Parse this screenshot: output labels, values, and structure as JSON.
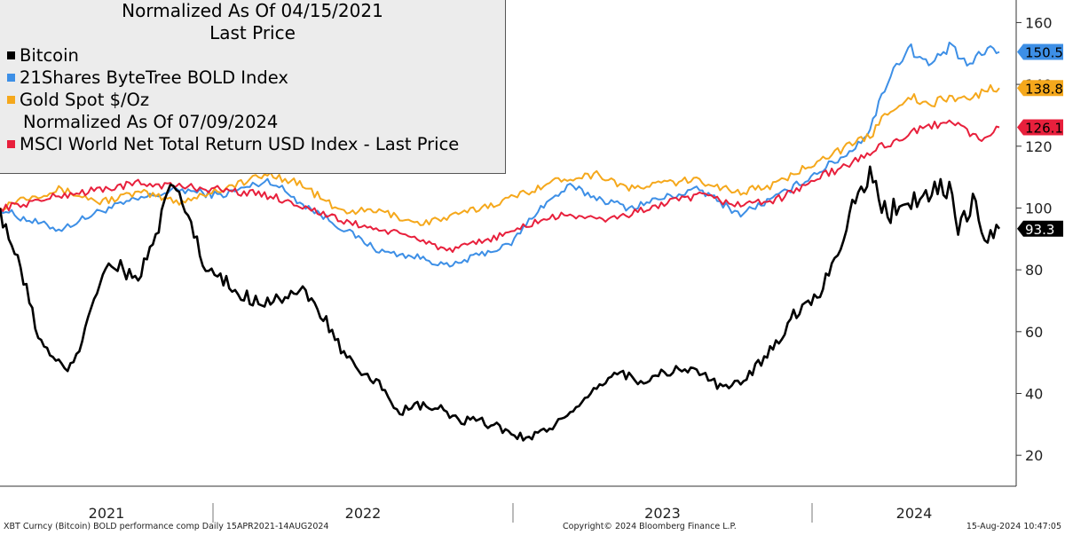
{
  "legend": {
    "title1": "Normalized As Of 04/15/2021",
    "title2": "Last Price",
    "subnote": "Normalized As Of 07/09/2024"
  },
  "footer": {
    "left": "XBT Curncy (Bitcoin) BOLD performance comp  Daily 15APR2021-14AUG2024",
    "center": "Copyright© 2024 Bloomberg Finance L.P.",
    "right": "15-Aug-2024 10:47:05"
  },
  "chart_data": {
    "type": "line",
    "title": "Normalized As Of 04/15/2021 - Last Price",
    "x_range": [
      "2021-04-15",
      "2024-08-14"
    ],
    "x_tick_labels": [
      "2021",
      "2022",
      "2023",
      "2024"
    ],
    "ylim": [
      10,
      165
    ],
    "y_ticks": [
      20,
      40,
      60,
      80,
      100,
      120,
      140,
      160
    ],
    "grid": false,
    "legend_position": "top-left",
    "series": [
      {
        "name": "21Shares ByteTree BOLD Index",
        "color": "#3d8fe6",
        "last_value": 150.5,
        "label_color": "#3d8fe6",
        "points": [
          [
            0,
            100
          ],
          [
            0.02,
            97
          ],
          [
            0.06,
            93
          ],
          [
            0.1,
            99
          ],
          [
            0.14,
            103
          ],
          [
            0.18,
            106
          ],
          [
            0.22,
            104
          ],
          [
            0.27,
            109
          ],
          [
            0.3,
            102
          ],
          [
            0.34,
            94
          ],
          [
            0.38,
            86
          ],
          [
            0.42,
            84
          ],
          [
            0.45,
            81
          ],
          [
            0.48,
            85
          ],
          [
            0.51,
            88
          ],
          [
            0.54,
            100
          ],
          [
            0.57,
            107
          ],
          [
            0.6,
            103
          ],
          [
            0.63,
            100
          ],
          [
            0.66,
            103
          ],
          [
            0.7,
            106
          ],
          [
            0.74,
            98
          ],
          [
            0.78,
            104
          ],
          [
            0.82,
            112
          ],
          [
            0.85,
            118
          ],
          [
            0.87,
            125
          ],
          [
            0.89,
            143
          ],
          [
            0.91,
            152
          ],
          [
            0.93,
            146
          ],
          [
            0.95,
            152
          ],
          [
            0.97,
            146
          ],
          [
            0.99,
            152
          ],
          [
            1.0,
            150.5
          ]
        ]
      },
      {
        "name": "Gold Spot $/Oz",
        "color": "#f5a81c",
        "last_value": 138.8,
        "label_color": "#f5a81c",
        "points": [
          [
            0,
            100
          ],
          [
            0.02,
            103
          ],
          [
            0.06,
            106
          ],
          [
            0.1,
            102
          ],
          [
            0.14,
            105
          ],
          [
            0.18,
            102
          ],
          [
            0.22,
            106
          ],
          [
            0.27,
            111
          ],
          [
            0.3,
            108
          ],
          [
            0.34,
            99
          ],
          [
            0.38,
            99
          ],
          [
            0.42,
            95
          ],
          [
            0.45,
            97
          ],
          [
            0.48,
            100
          ],
          [
            0.51,
            103
          ],
          [
            0.54,
            107
          ],
          [
            0.57,
            110
          ],
          [
            0.6,
            111
          ],
          [
            0.63,
            106
          ],
          [
            0.66,
            108
          ],
          [
            0.7,
            109
          ],
          [
            0.74,
            105
          ],
          [
            0.78,
            108
          ],
          [
            0.82,
            116
          ],
          [
            0.85,
            120
          ],
          [
            0.87,
            123
          ],
          [
            0.89,
            132
          ],
          [
            0.91,
            136
          ],
          [
            0.93,
            133
          ],
          [
            0.95,
            136
          ],
          [
            0.97,
            135
          ],
          [
            0.99,
            139
          ],
          [
            1.0,
            138.8
          ]
        ]
      },
      {
        "name": "MSCI World Net Total Return USD Index - Last Price",
        "color": "#e8203c",
        "last_value": 126.1,
        "label_color": "#e8203c",
        "normalized_note": "Normalized As Of 07/09/2024",
        "points": [
          [
            0,
            100
          ],
          [
            0.02,
            101
          ],
          [
            0.06,
            104
          ],
          [
            0.1,
            106
          ],
          [
            0.14,
            108
          ],
          [
            0.18,
            107
          ],
          [
            0.22,
            106
          ],
          [
            0.27,
            104
          ],
          [
            0.3,
            101
          ],
          [
            0.34,
            96
          ],
          [
            0.38,
            93
          ],
          [
            0.42,
            90
          ],
          [
            0.45,
            86
          ],
          [
            0.48,
            89
          ],
          [
            0.51,
            92
          ],
          [
            0.54,
            96
          ],
          [
            0.57,
            98
          ],
          [
            0.6,
            96
          ],
          [
            0.63,
            98
          ],
          [
            0.66,
            101
          ],
          [
            0.7,
            104
          ],
          [
            0.74,
            101
          ],
          [
            0.78,
            103
          ],
          [
            0.82,
            110
          ],
          [
            0.85,
            114
          ],
          [
            0.87,
            118
          ],
          [
            0.89,
            121
          ],
          [
            0.91,
            124
          ],
          [
            0.93,
            126
          ],
          [
            0.95,
            129
          ],
          [
            0.97,
            124
          ],
          [
            0.99,
            122
          ],
          [
            1.0,
            126.1
          ]
        ]
      },
      {
        "name": "Bitcoin",
        "color": "#000000",
        "last_value": 93.3,
        "label_color": "#000000",
        "points": [
          [
            0,
            100
          ],
          [
            0.01,
            90
          ],
          [
            0.025,
            75
          ],
          [
            0.04,
            57
          ],
          [
            0.055,
            50
          ],
          [
            0.07,
            48
          ],
          [
            0.08,
            55
          ],
          [
            0.09,
            68
          ],
          [
            0.105,
            80
          ],
          [
            0.12,
            82
          ],
          [
            0.135,
            76
          ],
          [
            0.15,
            85
          ],
          [
            0.165,
            100
          ],
          [
            0.175,
            108
          ],
          [
            0.19,
            96
          ],
          [
            0.205,
            80
          ],
          [
            0.22,
            77
          ],
          [
            0.24,
            72
          ],
          [
            0.26,
            70
          ],
          [
            0.28,
            71
          ],
          [
            0.3,
            73
          ],
          [
            0.32,
            67
          ],
          [
            0.34,
            55
          ],
          [
            0.36,
            46
          ],
          [
            0.38,
            43
          ],
          [
            0.4,
            34
          ],
          [
            0.42,
            36
          ],
          [
            0.44,
            35
          ],
          [
            0.46,
            31
          ],
          [
            0.48,
            31
          ],
          [
            0.5,
            29
          ],
          [
            0.52,
            26
          ],
          [
            0.54,
            27
          ],
          [
            0.56,
            31
          ],
          [
            0.58,
            35
          ],
          [
            0.6,
            43
          ],
          [
            0.62,
            47
          ],
          [
            0.64,
            44
          ],
          [
            0.66,
            46
          ],
          [
            0.68,
            48
          ],
          [
            0.7,
            47
          ],
          [
            0.72,
            42
          ],
          [
            0.74,
            43
          ],
          [
            0.76,
            50
          ],
          [
            0.78,
            58
          ],
          [
            0.8,
            68
          ],
          [
            0.82,
            72
          ],
          [
            0.84,
            88
          ],
          [
            0.855,
            103
          ],
          [
            0.87,
            110
          ],
          [
            0.88,
            103
          ],
          [
            0.89,
            98
          ],
          [
            0.905,
            104
          ],
          [
            0.92,
            101
          ],
          [
            0.935,
            108
          ],
          [
            0.95,
            105
          ],
          [
            0.96,
            93
          ],
          [
            0.975,
            104
          ],
          [
            0.985,
            88
          ],
          [
            1.0,
            93.3
          ]
        ]
      }
    ]
  }
}
